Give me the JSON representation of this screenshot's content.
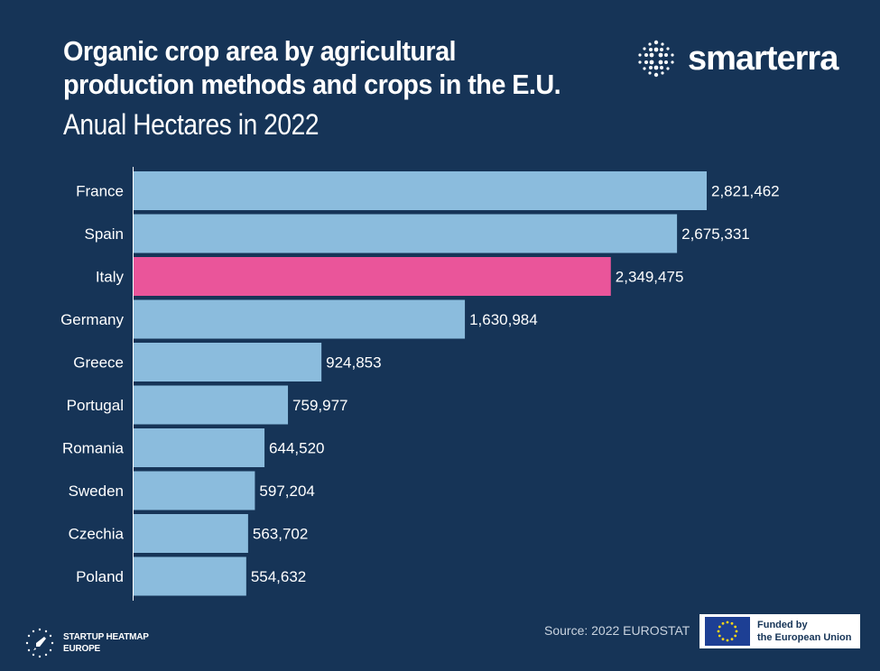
{
  "header": {
    "title": "Organic crop area by agricultural production methods and crops in the E.U.",
    "subtitle": "Anual Hectares in 2022"
  },
  "brand": {
    "name": "smarterra",
    "icon": "dot-grid-logo-icon"
  },
  "footer": {
    "source": "Source:  2022 EUROSTAT",
    "startup_line1": "STARTUP HEATMAP",
    "startup_line2": "EUROPE",
    "eu_line1": "Funded by",
    "eu_line2": "the European Union"
  },
  "colors": {
    "background": "#163457",
    "bar": "#8bbcdd",
    "highlight": "#ea559a",
    "text": "#ffffff"
  },
  "chart_data": {
    "type": "bar",
    "orientation": "horizontal",
    "title": "Organic crop area by agricultural production methods and crops in the E.U.",
    "subtitle": "Anual Hectares in 2022",
    "categories": [
      "France",
      "Spain",
      "Italy",
      "Germany",
      "Greece",
      "Portugal",
      "Romania",
      "Sweden",
      "Czechia",
      "Poland"
    ],
    "values": [
      2821462,
      2675331,
      2349475,
      1630984,
      924853,
      759977,
      644520,
      597204,
      563702,
      554632
    ],
    "value_labels": [
      "2,821,462",
      "2,675,331",
      "2,349,475",
      "1,630,984",
      "924,853",
      "759,977",
      "644,520",
      "597,204",
      "563,702",
      "554,632"
    ],
    "highlight": "Italy",
    "xlim": [
      0,
      2821462
    ],
    "grid": false,
    "legend": "none"
  }
}
